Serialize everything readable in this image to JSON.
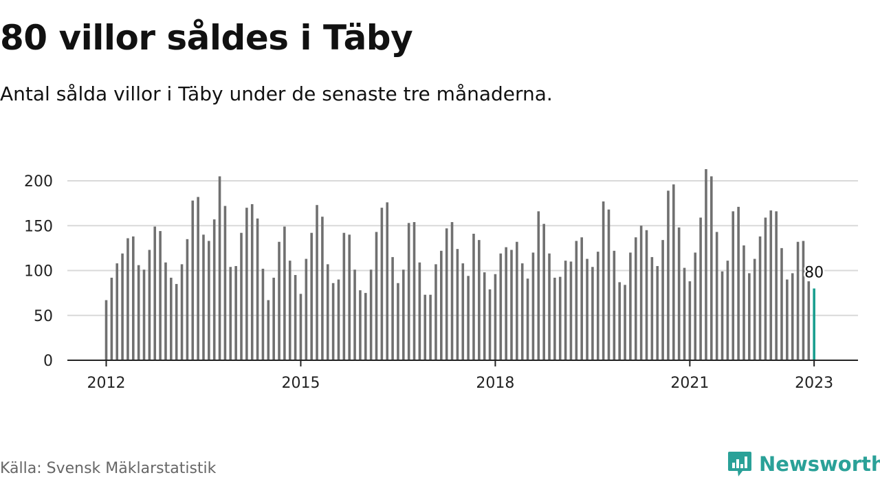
{
  "title": "80 villor såldes i Täby",
  "subtitle": "Antal sålda villor i Täby under de senaste tre månaderna.",
  "source": "Källa: Svensk Mäklarstatistik",
  "brand": {
    "name": "Newsworthy",
    "icon": "newsworthy-logo-icon",
    "color": "#2aa198"
  },
  "chart_data": {
    "type": "bar",
    "x_start": "2012-01",
    "x_step": "1 month",
    "values": [
      67,
      92,
      108,
      119,
      136,
      138,
      106,
      101,
      123,
      149,
      144,
      109,
      92,
      85,
      107,
      135,
      178,
      182,
      140,
      133,
      157,
      205,
      172,
      104,
      105,
      142,
      170,
      174,
      158,
      102,
      67,
      92,
      132,
      149,
      111,
      95,
      74,
      113,
      142,
      173,
      160,
      107,
      86,
      90,
      142,
      140,
      101,
      78,
      75,
      101,
      143,
      170,
      176,
      115,
      86,
      101,
      153,
      154,
      109,
      73,
      73,
      107,
      122,
      147,
      154,
      124,
      108,
      94,
      141,
      134,
      98,
      79,
      96,
      119,
      126,
      123,
      132,
      108,
      91,
      120,
      166,
      152,
      119,
      92,
      93,
      111,
      110,
      133,
      137,
      113,
      104,
      121,
      177,
      168,
      122,
      87,
      84,
      120,
      137,
      150,
      145,
      115,
      105,
      134,
      189,
      196,
      148,
      103,
      88,
      120,
      159,
      213,
      205,
      143,
      99,
      111,
      166,
      171,
      128,
      97,
      113,
      138,
      159,
      167,
      166,
      125,
      90,
      97,
      132,
      133,
      88,
      80
    ],
    "highlight_last": true,
    "highlight_label": "80",
    "bar_color": "#707070",
    "highlight_color": "#1a9e8f",
    "x_ticks": [
      "2012",
      "2015",
      "2018",
      "2021",
      "2023"
    ],
    "y_ticks": [
      0,
      50,
      100,
      150,
      200
    ],
    "ylim": [
      0,
      220
    ],
    "grid": true,
    "legend": "none"
  }
}
